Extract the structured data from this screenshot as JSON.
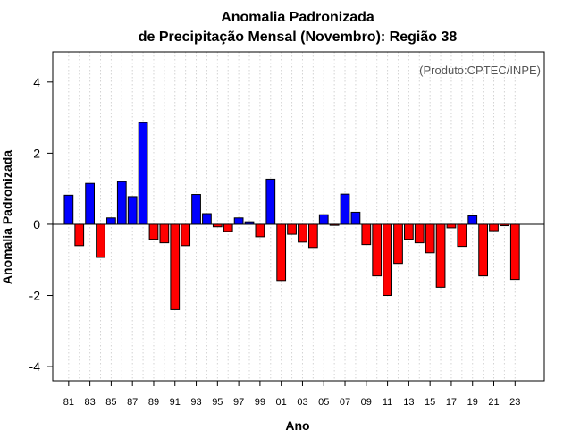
{
  "chart_data": {
    "type": "bar",
    "title": "Anomalia Padronizada",
    "subtitle": "de Precipitação Mensal (Novembro): Região 38",
    "xlabel": "Ano",
    "ylabel": "Anomalia Padronizada",
    "credit": "(Produto:CPTEC/INPE)",
    "ylim": [
      -4.4,
      4.85
    ],
    "yticks": [
      -4,
      -2,
      0,
      2,
      4
    ],
    "year_range": [
      1981,
      2023
    ],
    "xtick_labels": [
      "81",
      "83",
      "85",
      "87",
      "89",
      "91",
      "93",
      "95",
      "97",
      "99",
      "01",
      "03",
      "05",
      "07",
      "09",
      "11",
      "13",
      "15",
      "17",
      "19",
      "21",
      "23"
    ],
    "positive_color": "#0000ff",
    "negative_color": "#ff0000",
    "years": [
      1981,
      1982,
      1983,
      1984,
      1985,
      1986,
      1987,
      1988,
      1989,
      1990,
      1991,
      1992,
      1993,
      1994,
      1995,
      1996,
      1997,
      1998,
      1999,
      2000,
      2001,
      2002,
      2003,
      2004,
      2005,
      2006,
      2007,
      2008,
      2009,
      2010,
      2011,
      2012,
      2013,
      2014,
      2015,
      2016,
      2017,
      2018,
      2019,
      2020,
      2021,
      2022,
      2023
    ],
    "values": [
      0.82,
      -0.6,
      1.15,
      -0.93,
      0.18,
      1.2,
      0.78,
      2.86,
      -0.42,
      -0.52,
      -2.4,
      -0.6,
      0.84,
      0.3,
      -0.07,
      -0.2,
      0.18,
      0.07,
      -0.35,
      1.27,
      -1.58,
      -0.28,
      -0.5,
      -0.65,
      0.27,
      -0.03,
      0.85,
      0.34,
      -0.57,
      -1.45,
      -2.0,
      -1.1,
      -0.42,
      -0.52,
      -0.8,
      -1.77,
      -0.1,
      -0.62,
      0.24,
      -1.45,
      -0.18,
      -0.04,
      -1.55
    ]
  }
}
